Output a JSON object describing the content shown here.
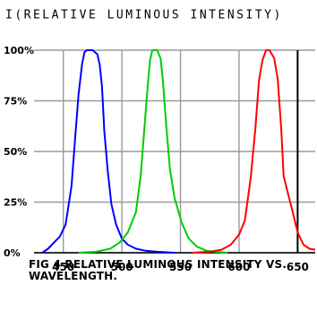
{
  "chart_data": {
    "type": "line",
    "ylabel": "I(RELATIVE LUMINOUS INTENSITY)",
    "caption_lines": [
      "FIG 4  RELATIVE LUMINOUS INTENSITY VS.",
      "WAVELENGTH."
    ],
    "xlim": [
      425,
      665
    ],
    "ylim": [
      0,
      100
    ],
    "x_ticks": [
      450,
      500,
      550,
      600,
      650
    ],
    "x_tick_labels": [
      "450",
      "500",
      "550",
      "600",
      "650"
    ],
    "y_ticks": [
      0,
      25,
      50,
      75,
      100
    ],
    "y_tick_labels": [
      "0%",
      "25%",
      "50%",
      "75%",
      "100%"
    ],
    "grid": true,
    "marker_line_x": 650,
    "series": [
      {
        "color": "#0000ff",
        "x": [
          432,
          437,
          442,
          447,
          452,
          457,
          460,
          463,
          466,
          468,
          470,
          475,
          479,
          481,
          483,
          485,
          488,
          491,
          495,
          500,
          505,
          512,
          520,
          530,
          545
        ],
        "y": [
          0,
          2,
          5,
          8,
          14,
          33,
          56,
          78,
          93,
          99,
          100,
          100,
          98,
          93,
          82,
          60,
          40,
          24,
          14,
          7,
          4,
          2,
          1,
          0.5,
          0
        ]
      },
      {
        "color": "#00cc00",
        "x": [
          463,
          478,
          490,
          498,
          505,
          512,
          516,
          519,
          522,
          524,
          526,
          530,
          533,
          535,
          538,
          541,
          545,
          551,
          557,
          564,
          572,
          580,
          590
        ],
        "y": [
          0,
          0.5,
          2,
          5,
          10,
          20,
          38,
          60,
          82,
          95,
          100,
          100,
          96,
          85,
          62,
          41,
          27,
          15,
          7,
          3,
          1,
          0.5,
          0
        ]
      },
      {
        "color": "#ff0000",
        "x": [
          560,
          575,
          585,
          593,
          600,
          605,
          610,
          614,
          617,
          620,
          623,
          626,
          630,
          633,
          636,
          638,
          641,
          645,
          650,
          655,
          660,
          665
        ],
        "y": [
          0,
          0.5,
          1.5,
          4,
          9,
          16,
          37,
          62,
          85,
          95,
          100,
          100,
          96,
          86,
          61,
          38,
          31,
          22,
          10,
          4,
          2,
          1.5
        ]
      }
    ]
  }
}
